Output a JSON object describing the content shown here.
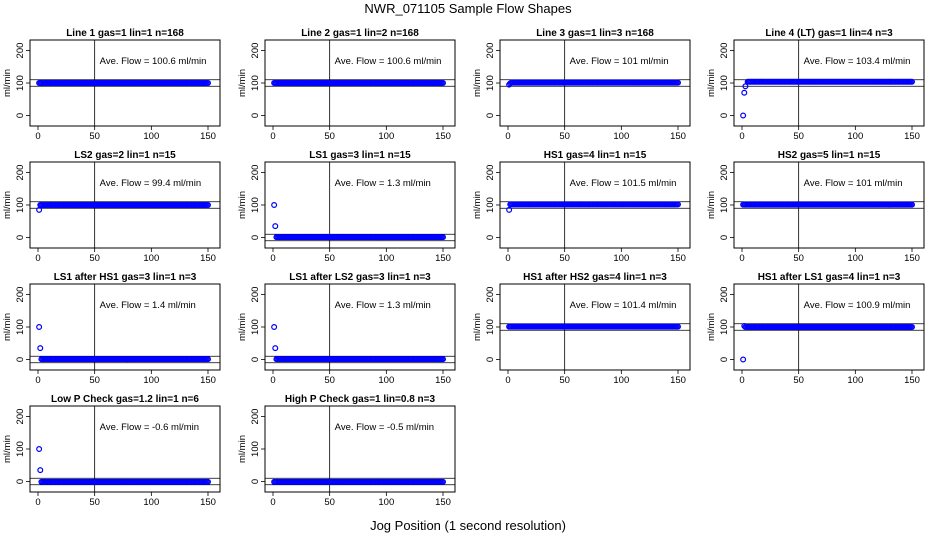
{
  "page_title": "NWR_071105  Sample Flow Shapes",
  "x_axis_label": "Jog Position (1 second resolution)",
  "y_axis_label": "ml/min",
  "annotation_prefix": "Ave. Flow =",
  "annotation_unit": "ml/min",
  "x_ticks": [
    "0",
    "50",
    "100",
    "150"
  ],
  "y_ticks": [
    "0",
    "100",
    "200"
  ],
  "colors": {
    "points": "#0000ff",
    "axes": "#000000"
  },
  "chart_data": [
    {
      "type": "scatter",
      "title": "Line 1 gas=1 lin=1 n=168",
      "ave_flow": "100.6",
      "xlim": [
        0,
        150
      ],
      "ylim": [
        -20,
        220
      ],
      "vline_x": 50,
      "hline_y": [
        90,
        110
      ],
      "series": [
        {
          "x": [
            1,
            150
          ],
          "y": [
            100,
            100
          ]
        }
      ]
    },
    {
      "type": "scatter",
      "title": "Line 2 gas=1 lin=2 n=168",
      "ave_flow": "100.6",
      "xlim": [
        0,
        150
      ],
      "ylim": [
        -20,
        220
      ],
      "vline_x": 50,
      "hline_y": [
        90,
        110
      ],
      "series": [
        {
          "x": [
            1,
            150
          ],
          "y": [
            100,
            100
          ]
        }
      ]
    },
    {
      "type": "scatter",
      "title": "Line 3 gas=1 lin=3 n=168",
      "ave_flow": "101",
      "xlim": [
        0,
        150
      ],
      "ylim": [
        -20,
        220
      ],
      "vline_x": 50,
      "hline_y": [
        90,
        110
      ],
      "series": [
        {
          "x": [
            1,
            2,
            3,
            150
          ],
          "y": [
            95,
            99,
            100,
            101
          ]
        }
      ]
    },
    {
      "type": "scatter",
      "title": "Line 4 (LT) gas=1 lin=4 n=3",
      "ave_flow": "103.4",
      "xlim": [
        0,
        150
      ],
      "ylim": [
        -20,
        220
      ],
      "vline_x": 50,
      "hline_y": [
        90,
        110
      ],
      "series": [
        {
          "x": [
            1,
            2,
            3,
            5,
            150
          ],
          "y": [
            0,
            70,
            90,
            100,
            104
          ]
        }
      ]
    },
    {
      "type": "scatter",
      "title": "LS2 gas=2 lin=1 n=15",
      "ave_flow": "99.4",
      "xlim": [
        0,
        150
      ],
      "ylim": [
        -20,
        220
      ],
      "vline_x": 50,
      "hline_y": [
        90,
        110
      ],
      "series": [
        {
          "x": [
            1,
            2,
            150
          ],
          "y": [
            85,
            100,
            100
          ]
        }
      ]
    },
    {
      "type": "scatter",
      "title": "LS1 gas=3 lin=1 n=15",
      "ave_flow": "1.3",
      "xlim": [
        0,
        150
      ],
      "ylim": [
        -20,
        220
      ],
      "vline_x": 50,
      "hline_y": [
        -10,
        10
      ],
      "series": [
        {
          "x": [
            1,
            2,
            3,
            150
          ],
          "y": [
            100,
            35,
            2,
            1
          ]
        }
      ]
    },
    {
      "type": "scatter",
      "title": "HS1 gas=4 lin=1 n=15",
      "ave_flow": "101.5",
      "xlim": [
        0,
        150
      ],
      "ylim": [
        -20,
        220
      ],
      "vline_x": 50,
      "hline_y": [
        90,
        110
      ],
      "series": [
        {
          "x": [
            1,
            2,
            150
          ],
          "y": [
            85,
            100,
            102
          ]
        }
      ]
    },
    {
      "type": "scatter",
      "title": "HS2 gas=5 lin=1 n=15",
      "ave_flow": "101",
      "xlim": [
        0,
        150
      ],
      "ylim": [
        -20,
        220
      ],
      "vline_x": 50,
      "hline_y": [
        90,
        110
      ],
      "series": [
        {
          "x": [
            1,
            150
          ],
          "y": [
            101,
            101
          ]
        }
      ]
    },
    {
      "type": "scatter",
      "title": "LS1 after HS1 gas=3 lin=1 n=3",
      "ave_flow": "1.4",
      "xlim": [
        0,
        150
      ],
      "ylim": [
        -20,
        220
      ],
      "vline_x": 50,
      "hline_y": [
        -10,
        10
      ],
      "series": [
        {
          "x": [
            1,
            2,
            3,
            150
          ],
          "y": [
            100,
            35,
            2,
            1
          ]
        }
      ]
    },
    {
      "type": "scatter",
      "title": "LS1 after LS2 gas=3 lin=1 n=3",
      "ave_flow": "1.3",
      "xlim": [
        0,
        150
      ],
      "ylim": [
        -20,
        220
      ],
      "vline_x": 50,
      "hline_y": [
        -10,
        10
      ],
      "series": [
        {
          "x": [
            1,
            2,
            3,
            150
          ],
          "y": [
            100,
            35,
            2,
            1
          ]
        }
      ]
    },
    {
      "type": "scatter",
      "title": "HS1 after HS2 gas=4 lin=1 n=3",
      "ave_flow": "101.4",
      "xlim": [
        0,
        150
      ],
      "ylim": [
        -20,
        220
      ],
      "vline_x": 50,
      "hline_y": [
        90,
        110
      ],
      "series": [
        {
          "x": [
            1,
            150
          ],
          "y": [
            100,
            101
          ]
        }
      ]
    },
    {
      "type": "scatter",
      "title": "HS1 after LS1 gas=4 lin=1 n=3",
      "ave_flow": "100.9",
      "xlim": [
        0,
        150
      ],
      "ylim": [
        -20,
        220
      ],
      "vline_x": 50,
      "hline_y": [
        90,
        110
      ],
      "series": [
        {
          "x": [
            1,
            2,
            3,
            150
          ],
          "y": [
            0,
            103,
            104,
            100
          ]
        }
      ]
    },
    {
      "type": "scatter",
      "title": "Low P Check gas=1.2 lin=1 n=6",
      "ave_flow": "-0.6",
      "xlim": [
        0,
        150
      ],
      "ylim": [
        -20,
        220
      ],
      "vline_x": 50,
      "hline_y": [
        -10,
        10
      ],
      "series": [
        {
          "x": [
            1,
            2,
            3,
            150
          ],
          "y": [
            100,
            35,
            2,
            -1
          ]
        }
      ]
    },
    {
      "type": "scatter",
      "title": "High P Check gas=1 lin=0.8 n=3",
      "ave_flow": "-0.5",
      "xlim": [
        0,
        150
      ],
      "ylim": [
        -20,
        220
      ],
      "vline_x": 50,
      "hline_y": [
        -10,
        10
      ],
      "series": [
        {
          "x": [
            1,
            150
          ],
          "y": [
            -1,
            -1
          ]
        }
      ]
    }
  ]
}
